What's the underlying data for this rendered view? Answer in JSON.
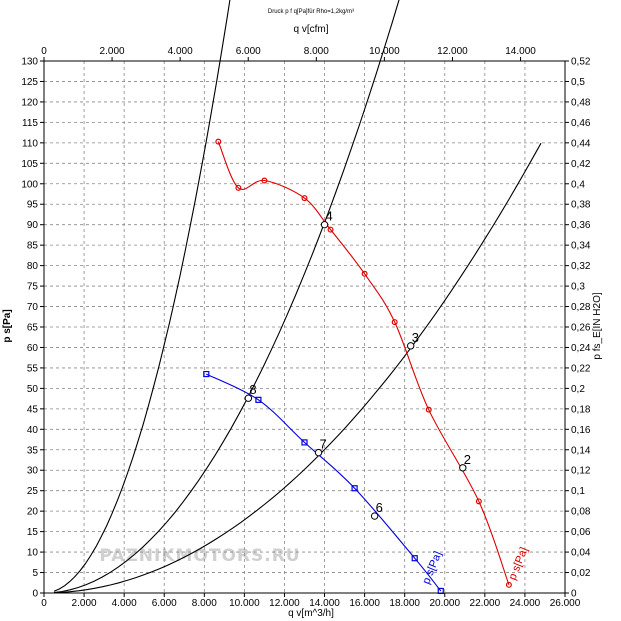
{
  "chart_data": {
    "type": "line",
    "title": "Druck p f q[Pa]für Rho=1,2kg/m³",
    "watermark": "PAZNIKMOTORS.RU",
    "xlabel_bottom": "q v[m^3/h]",
    "xlabel_top": "q v[cfm]",
    "ylabel_left": "p s[Pa]",
    "ylabel_right": "p fs_E[IN H2O]",
    "xlim": [
      0,
      26000
    ],
    "ylim": [
      0,
      130
    ],
    "top_xlim_cfm": [
      0,
      15306
    ],
    "right_ylim": [
      0,
      0.52
    ],
    "grid": true,
    "x_ticks": [
      "0",
      "2.000",
      "4.000",
      "6.000",
      "8.000",
      "10.000",
      "12.000",
      "14.000",
      "16.000",
      "18.000",
      "20.000",
      "22.000",
      "24.000",
      "26.000"
    ],
    "y_ticks": [
      "0",
      "5",
      "10",
      "15",
      "20",
      "25",
      "30",
      "35",
      "40",
      "45",
      "50",
      "55",
      "60",
      "65",
      "70",
      "75",
      "80",
      "85",
      "90",
      "95",
      "100",
      "105",
      "110",
      "115",
      "120",
      "125",
      "130"
    ],
    "top_ticks": [
      "0",
      "2.000",
      "4.000",
      "6.000",
      "8.000",
      "10.000",
      "12.000",
      "14.000"
    ],
    "right_ticks": [
      "0",
      "0,02",
      "0,04",
      "0,06",
      "0,08",
      "0,1",
      "0,12",
      "0,14",
      "0,16",
      "0,18",
      "0,2",
      "0,22",
      "0,24",
      "0,26",
      "0,28",
      "0,3",
      "0,32",
      "0,34",
      "0,36",
      "0,38",
      "0,4",
      "0,42",
      "0,44",
      "0,46",
      "0,48",
      "0,5",
      "0,52"
    ],
    "series": [
      {
        "name": "p s[Pa]",
        "color": "#e00000",
        "marker": "circle",
        "measured": [
          [
            8700,
            110.3
          ],
          [
            9700,
            99
          ],
          [
            11000,
            100.8
          ],
          [
            13000,
            96.5
          ],
          [
            14300,
            88.8
          ],
          [
            16000,
            78
          ],
          [
            17500,
            66.2
          ],
          [
            19200,
            44.8
          ],
          [
            21700,
            22.4
          ],
          [
            23200,
            2
          ]
        ],
        "label_at": [
          23500,
          3
        ]
      },
      {
        "name": "p s[Pa]",
        "color": "#0000e0",
        "marker": "square",
        "measured": [
          [
            8100,
            53.5
          ],
          [
            10700,
            47.2
          ],
          [
            13000,
            36.8
          ],
          [
            15500,
            25.6
          ],
          [
            18500,
            8.5
          ],
          [
            19800,
            0.5
          ]
        ],
        "label_at": [
          19200,
          2
        ]
      }
    ],
    "system_curves": [
      {
        "k": 1.684e-06,
        "xmax": 16200
      },
      {
        "k": 4.617e-07,
        "xmax": 24600
      },
      {
        "k": 1.787e-07,
        "xmax": 24800
      }
    ],
    "operating_points": [
      {
        "label": "2",
        "x": 20900,
        "y": 30.6
      },
      {
        "label": "3",
        "x": 18300,
        "y": 60.4
      },
      {
        "label": "4",
        "x": 14000,
        "y": 90
      },
      {
        "label": "6",
        "x": 16500,
        "y": 18.8
      },
      {
        "label": "7",
        "x": 13700,
        "y": 34.3
      },
      {
        "label": "8",
        "x": 10200,
        "y": 47.6
      }
    ]
  }
}
